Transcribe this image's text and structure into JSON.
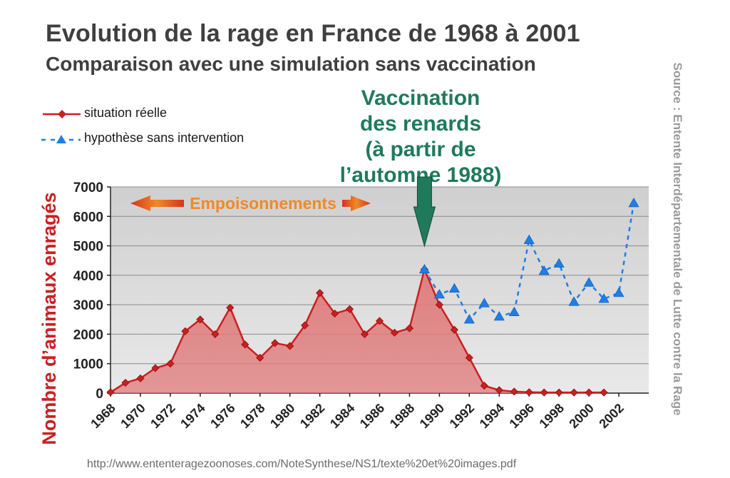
{
  "title": "Evolution de la rage en France de 1968 à 2001",
  "subtitle": "Comparaison avec une simulation sans vaccination",
  "source_text": "Source : Entente Interdépartementale de Lutte contre la Rage",
  "url": "http://www.ententeragezoonoses.com/NoteSynthese/NS1/texte%20et%20images.pdf",
  "annotation_vaccination": [
    "Vaccination",
    "des renards",
    "(à partir de",
    "l’automne 1988)"
  ],
  "annotation_poisoning": "Empoisonnements",
  "colors": {
    "real": "#cc1f1f",
    "area": "#e07b7b",
    "hypothesis": "#1e7ee8",
    "arrow": "#f08a24",
    "vacc": "#1f7a5c",
    "plot_bg": "#dcdcdc"
  },
  "chart_data": {
    "type": "line",
    "ylabel": "Nombre d’animaux enragés",
    "xlabel": "",
    "ylim": [
      0,
      7000
    ],
    "yticks": [
      0,
      1000,
      2000,
      3000,
      4000,
      5000,
      6000,
      7000
    ],
    "ytick_labels": [
      "0",
      "1000",
      "2000",
      "3000",
      "4000",
      "5000",
      "6000",
      "7000"
    ],
    "xlim": [
      1968,
      2004
    ],
    "xticks": [
      1968,
      1970,
      1972,
      1974,
      1976,
      1978,
      1980,
      1982,
      1984,
      1986,
      1988,
      1990,
      1992,
      1994,
      1996,
      1998,
      2000,
      2002
    ],
    "xtick_labels": [
      "1968",
      "1970",
      "1972",
      "1974",
      "1976",
      "1978",
      "1980",
      "1982",
      "1984",
      "1986",
      "1988",
      "1990",
      "1992",
      "1994",
      "1996",
      "1998",
      "2000",
      "2002"
    ],
    "legend_position": "top-left",
    "series": [
      {
        "name": "situation réelle",
        "style": "solid-diamond-filled",
        "x": [
          1968,
          1969,
          1970,
          1971,
          1972,
          1973,
          1974,
          1975,
          1976,
          1977,
          1978,
          1979,
          1980,
          1981,
          1982,
          1983,
          1984,
          1985,
          1986,
          1987,
          1988,
          1989,
          1990,
          1991,
          1992,
          1993,
          1994,
          1995,
          1996,
          1997,
          1998,
          1999,
          2000,
          2001
        ],
        "values": [
          30,
          350,
          500,
          850,
          1000,
          2100,
          2500,
          2000,
          2900,
          1650,
          1200,
          1700,
          1600,
          2300,
          3400,
          2700,
          2850,
          2000,
          2450,
          2050,
          2200,
          4200,
          3000,
          2150,
          1200,
          250,
          100,
          50,
          30,
          20,
          20,
          20,
          20,
          20
        ]
      },
      {
        "name": "hypothèse sans intervention",
        "style": "dashed-triangle",
        "x": [
          1989,
          1990,
          1991,
          1992,
          1993,
          1994,
          1995,
          1996,
          1997,
          1998,
          1999,
          2000,
          2001,
          2002,
          2003
        ],
        "values": [
          4200,
          3350,
          3550,
          2500,
          3050,
          2600,
          2750,
          5200,
          4150,
          4400,
          3100,
          3750,
          3200,
          3400,
          6450
        ]
      }
    ]
  }
}
